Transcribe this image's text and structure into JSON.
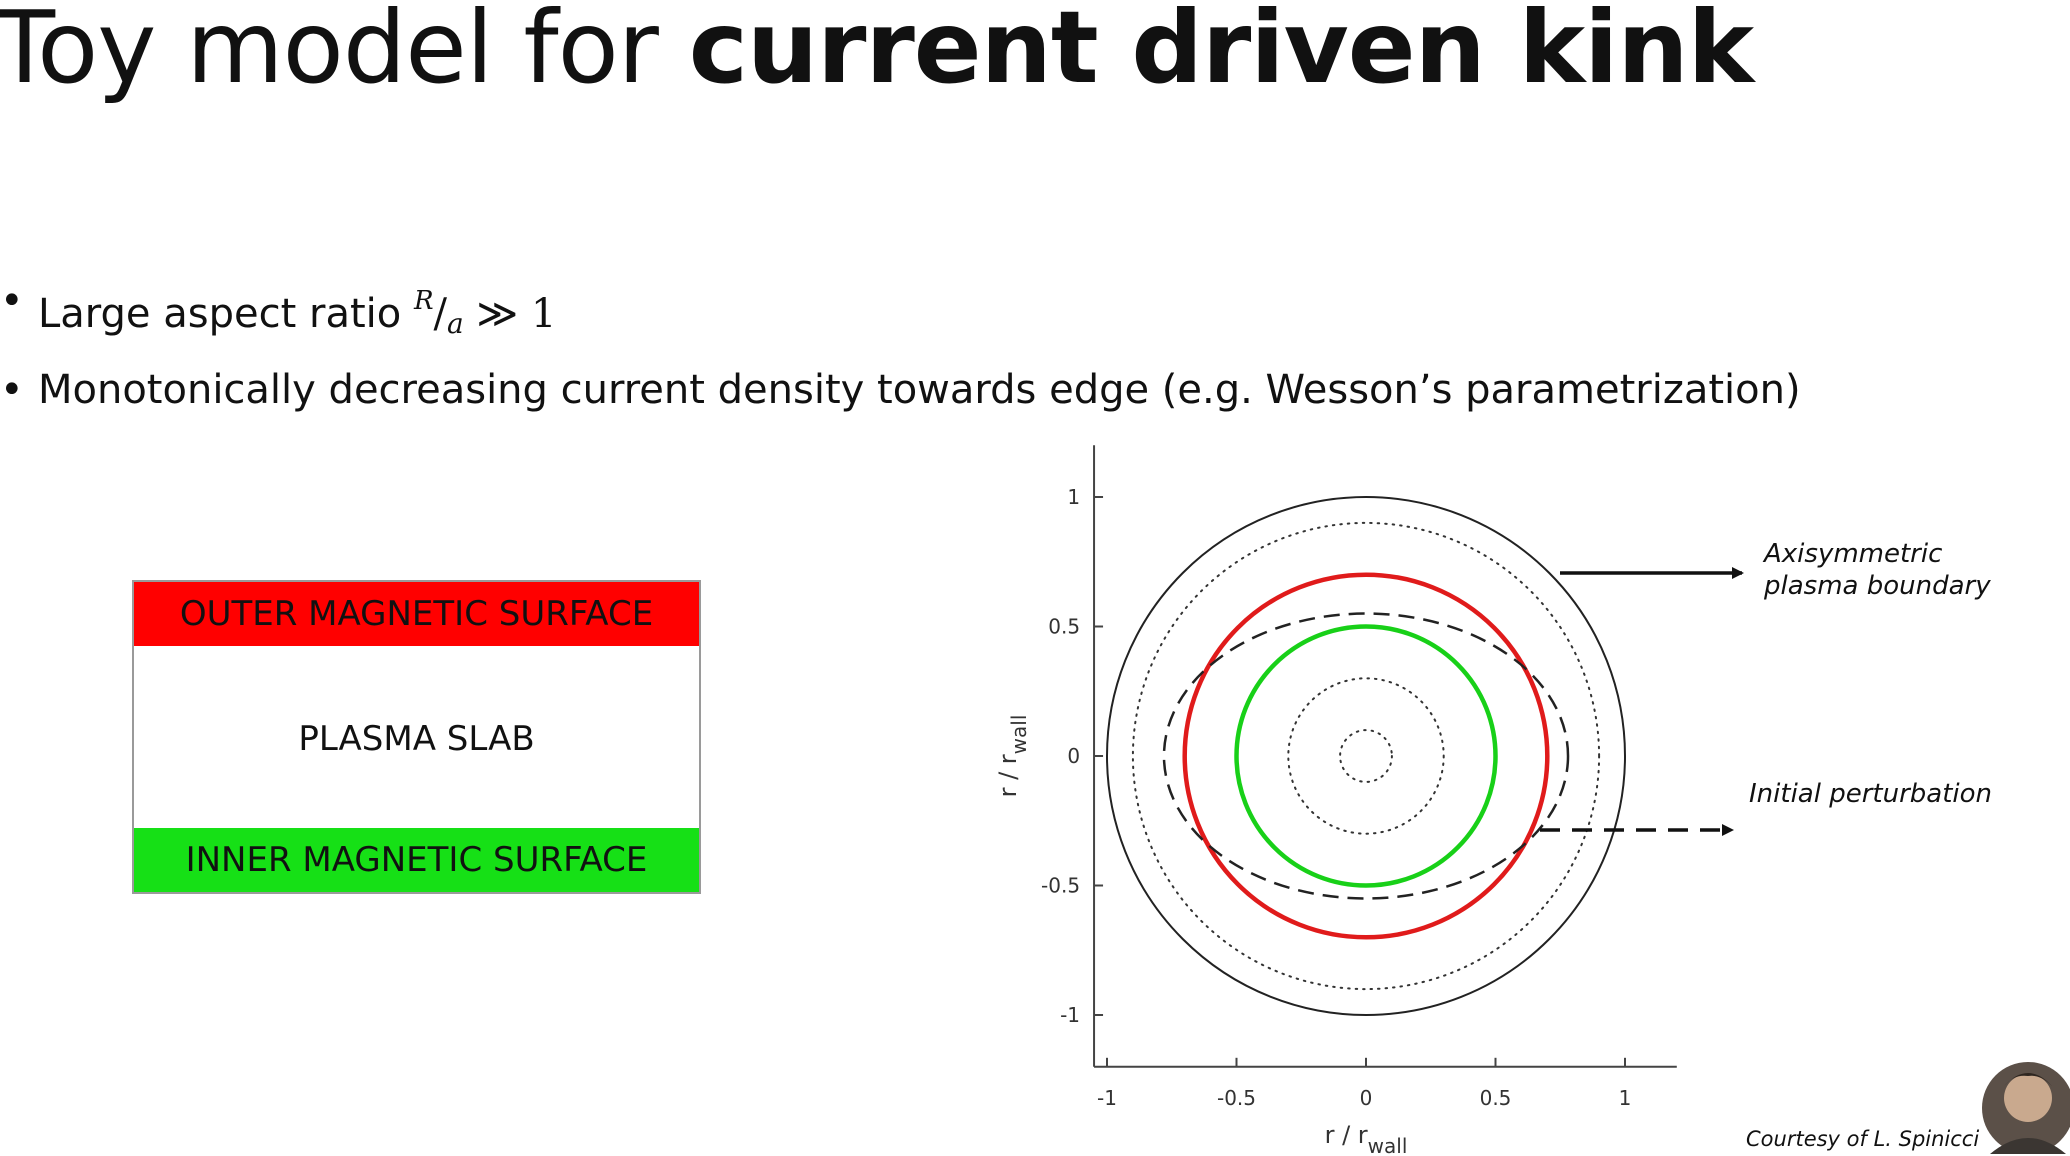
{
  "title": {
    "regular": "Toy model for ",
    "bold": "current driven kink"
  },
  "bullets": {
    "marker": "•",
    "b1_text": "Large aspect ratio ",
    "b1_num": "R",
    "b1_den": "a",
    "b1_rel": " ≫ 1",
    "b2_text": "Monotonically decreasing current density towards edge (e.g. Wesson’s parametrization)"
  },
  "slab": {
    "outer_label": "OUTER MAGNETIC SURFACE",
    "middle_label": "PLASMA SLAB",
    "inner_label": "INNER MAGNETIC SURFACE",
    "outer_color": "#ff0000",
    "inner_color": "#16e016"
  },
  "chart_data": {
    "type": "scatter",
    "xlabel": "r / r",
    "xlabel_sub": "wall",
    "ylabel": "r / r",
    "ylabel_sub": "wall",
    "xlim": [
      -1.05,
      1.2
    ],
    "ylim": [
      -1.2,
      1.2
    ],
    "xticks": [
      -1,
      -0.5,
      0,
      0.5,
      1
    ],
    "xtick_labels": [
      "-1",
      "-0.5",
      "0",
      "0.5",
      "1"
    ],
    "yticks": [
      1,
      0.5,
      0,
      -0.5,
      -1
    ],
    "ytick_labels": [
      "1",
      "0.5",
      "0",
      "-0.5",
      "-1"
    ],
    "grid": false,
    "curves": [
      {
        "id": "wall",
        "shape": "circle",
        "r": 1.0,
        "color": "#222222",
        "style": "solid"
      },
      {
        "id": "flux-1",
        "shape": "circle",
        "r": 0.9,
        "color": "#333333",
        "style": "dotted"
      },
      {
        "id": "outer-surface",
        "shape": "circle",
        "r": 0.7,
        "color": "#e01b1b",
        "style": "solid"
      },
      {
        "id": "perturbation",
        "shape": "ellipse",
        "rx": 0.78,
        "ry": 0.55,
        "color": "#222222",
        "style": "dashed"
      },
      {
        "id": "inner-surface",
        "shape": "circle",
        "r": 0.5,
        "color": "#18d018",
        "style": "solid"
      },
      {
        "id": "flux-2",
        "shape": "circle",
        "r": 0.3,
        "color": "#333333",
        "style": "dotted"
      },
      {
        "id": "flux-3",
        "shape": "circle",
        "r": 0.1,
        "color": "#333333",
        "style": "dotted"
      }
    ],
    "annotations": [
      {
        "lines": [
          "Axisymmetric",
          "plasma boundary"
        ],
        "arrow": "solid"
      },
      {
        "lines": [
          "Initial perturbation"
        ],
        "arrow": "dashed"
      }
    ]
  },
  "credit": "Courtesy of L. Spinicci"
}
